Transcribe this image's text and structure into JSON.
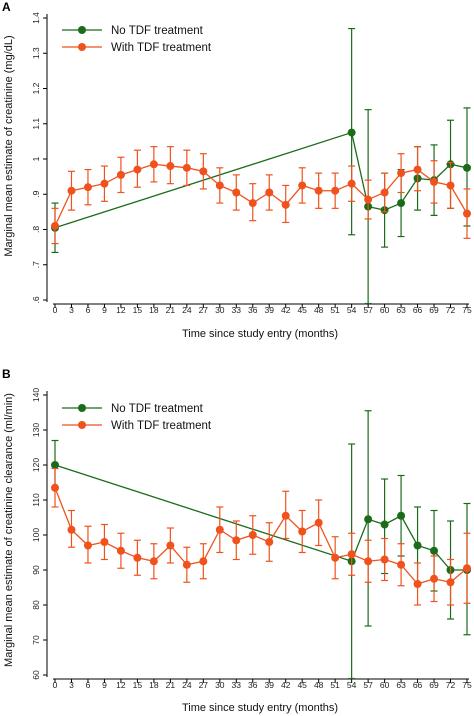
{
  "colors": {
    "no_tdf": "#1b6b1b",
    "with_tdf": "#f0521d"
  },
  "chart_data": [
    {
      "panel": "A",
      "type": "line",
      "xlabel": "Time since study entry (months)",
      "ylabel": "Marginal mean estimate of creatinine (mg/dL)",
      "x_ticks": [
        "0",
        "3",
        "6",
        "9",
        "12",
        "15",
        "18",
        "21",
        "24",
        "27",
        "30",
        "33",
        "36",
        "39",
        "42",
        "45",
        "48",
        "51",
        "54",
        "57",
        "60",
        "63",
        "66",
        "69",
        "72",
        "75"
      ],
      "y_ticks": [
        ".6",
        ".7",
        ".8",
        ".9",
        "1",
        "1.1",
        "1.2",
        "1.3",
        "1.4"
      ],
      "xlim": [
        0,
        75
      ],
      "ylim": [
        0.6,
        1.4
      ],
      "grid": false,
      "legend_position": "top-left",
      "series": [
        {
          "name": "No TDF treatment",
          "color": "#1b6b1b",
          "points": [
            {
              "x": 0,
              "y": 0.805,
              "lo": 0.735,
              "hi": 0.875
            },
            {
              "x": 54,
              "y": 1.075,
              "lo": 0.785,
              "hi": 1.37
            },
            {
              "x": 57,
              "y": 0.865,
              "lo": 0.59,
              "hi": 1.14
            },
            {
              "x": 60,
              "y": 0.855,
              "lo": 0.75,
              "hi": 0.96
            },
            {
              "x": 63,
              "y": 0.875,
              "lo": 0.78,
              "hi": 0.97
            },
            {
              "x": 66,
              "y": 0.945,
              "lo": 0.855,
              "hi": 1.035
            },
            {
              "x": 69,
              "y": 0.94,
              "lo": 0.84,
              "hi": 1.04
            },
            {
              "x": 72,
              "y": 0.985,
              "lo": 0.86,
              "hi": 1.11
            },
            {
              "x": 75,
              "y": 0.975,
              "lo": 0.81,
              "hi": 1.145
            }
          ]
        },
        {
          "name": "With TDF treatment",
          "color": "#f0521d",
          "points": [
            {
              "x": 0,
              "y": 0.81,
              "lo": 0.76,
              "hi": 0.86
            },
            {
              "x": 3,
              "y": 0.91,
              "lo": 0.855,
              "hi": 0.965
            },
            {
              "x": 6,
              "y": 0.92,
              "lo": 0.87,
              "hi": 0.97
            },
            {
              "x": 9,
              "y": 0.93,
              "lo": 0.88,
              "hi": 0.98
            },
            {
              "x": 12,
              "y": 0.955,
              "lo": 0.905,
              "hi": 1.005
            },
            {
              "x": 15,
              "y": 0.97,
              "lo": 0.92,
              "hi": 1.025
            },
            {
              "x": 18,
              "y": 0.985,
              "lo": 0.935,
              "hi": 1.035
            },
            {
              "x": 21,
              "y": 0.98,
              "lo": 0.93,
              "hi": 1.035
            },
            {
              "x": 24,
              "y": 0.975,
              "lo": 0.925,
              "hi": 1.025
            },
            {
              "x": 27,
              "y": 0.965,
              "lo": 0.915,
              "hi": 1.015
            },
            {
              "x": 30,
              "y": 0.925,
              "lo": 0.875,
              "hi": 0.975
            },
            {
              "x": 33,
              "y": 0.905,
              "lo": 0.855,
              "hi": 0.955
            },
            {
              "x": 36,
              "y": 0.875,
              "lo": 0.825,
              "hi": 0.93
            },
            {
              "x": 39,
              "y": 0.905,
              "lo": 0.855,
              "hi": 0.955
            },
            {
              "x": 42,
              "y": 0.87,
              "lo": 0.82,
              "hi": 0.925
            },
            {
              "x": 45,
              "y": 0.925,
              "lo": 0.875,
              "hi": 0.975
            },
            {
              "x": 48,
              "y": 0.91,
              "lo": 0.86,
              "hi": 0.96
            },
            {
              "x": 51,
              "y": 0.91,
              "lo": 0.86,
              "hi": 0.96
            },
            {
              "x": 54,
              "y": 0.93,
              "lo": 0.88,
              "hi": 0.98
            },
            {
              "x": 57,
              "y": 0.885,
              "lo": 0.83,
              "hi": 0.94
            },
            {
              "x": 60,
              "y": 0.905,
              "lo": 0.85,
              "hi": 0.96
            },
            {
              "x": 63,
              "y": 0.96,
              "lo": 0.905,
              "hi": 1.015
            },
            {
              "x": 66,
              "y": 0.97,
              "lo": 0.91,
              "hi": 1.035
            },
            {
              "x": 69,
              "y": 0.935,
              "lo": 0.875,
              "hi": 0.995
            },
            {
              "x": 72,
              "y": 0.925,
              "lo": 0.86,
              "hi": 0.99
            },
            {
              "x": 75,
              "y": 0.845,
              "lo": 0.775,
              "hi": 0.915
            }
          ]
        }
      ]
    },
    {
      "panel": "B",
      "type": "line",
      "xlabel": "Time since study entry (months)",
      "ylabel": "Marginal mean estimate of creatinine clearance (ml/min)",
      "x_ticks": [
        "0",
        "3",
        "6",
        "9",
        "12",
        "15",
        "18",
        "21",
        "24",
        "27",
        "30",
        "33",
        "36",
        "39",
        "42",
        "45",
        "48",
        "51",
        "54",
        "57",
        "60",
        "63",
        "66",
        "69",
        "72",
        "75"
      ],
      "y_ticks": [
        "60",
        "70",
        "80",
        "90",
        "100",
        "110",
        "120",
        "130",
        "140"
      ],
      "xlim": [
        0,
        75
      ],
      "ylim": [
        60,
        140
      ],
      "grid": false,
      "legend_position": "top-left",
      "series": [
        {
          "name": "No TDF treatment",
          "color": "#1b6b1b",
          "points": [
            {
              "x": 0,
              "y": 120,
              "lo": 113,
              "hi": 127
            },
            {
              "x": 54,
              "y": 92.5,
              "lo": 59,
              "hi": 126
            },
            {
              "x": 57,
              "y": 104.5,
              "lo": 74,
              "hi": 135.5
            },
            {
              "x": 60,
              "y": 103,
              "lo": 89,
              "hi": 116
            },
            {
              "x": 63,
              "y": 105.5,
              "lo": 94,
              "hi": 117
            },
            {
              "x": 66,
              "y": 97,
              "lo": 86,
              "hi": 108
            },
            {
              "x": 69,
              "y": 95.5,
              "lo": 84,
              "hi": 107
            },
            {
              "x": 72,
              "y": 90,
              "lo": 76,
              "hi": 104
            },
            {
              "x": 75,
              "y": 90,
              "lo": 71.5,
              "hi": 109
            }
          ]
        },
        {
          "name": "With TDF treatment",
          "color": "#f0521d",
          "points": [
            {
              "x": 0,
              "y": 113.5,
              "lo": 108,
              "hi": 119
            },
            {
              "x": 3,
              "y": 101.5,
              "lo": 96.5,
              "hi": 107
            },
            {
              "x": 6,
              "y": 97,
              "lo": 92,
              "hi": 102.5
            },
            {
              "x": 9,
              "y": 98,
              "lo": 93,
              "hi": 103
            },
            {
              "x": 12,
              "y": 95.5,
              "lo": 90.5,
              "hi": 100.5
            },
            {
              "x": 15,
              "y": 93.5,
              "lo": 88.5,
              "hi": 98.5
            },
            {
              "x": 18,
              "y": 92.5,
              "lo": 87.5,
              "hi": 97.5
            },
            {
              "x": 21,
              "y": 97,
              "lo": 92,
              "hi": 102
            },
            {
              "x": 24,
              "y": 91.5,
              "lo": 86.5,
              "hi": 96.5
            },
            {
              "x": 27,
              "y": 92.5,
              "lo": 87.5,
              "hi": 97.5
            },
            {
              "x": 30,
              "y": 101.5,
              "lo": 95,
              "hi": 108
            },
            {
              "x": 33,
              "y": 98.5,
              "lo": 93,
              "hi": 104
            },
            {
              "x": 36,
              "y": 100,
              "lo": 94.5,
              "hi": 105.5
            },
            {
              "x": 39,
              "y": 98,
              "lo": 92.5,
              "hi": 103.5
            },
            {
              "x": 42,
              "y": 105.5,
              "lo": 99,
              "hi": 112.5
            },
            {
              "x": 45,
              "y": 101,
              "lo": 95,
              "hi": 107
            },
            {
              "x": 48,
              "y": 103.5,
              "lo": 97,
              "hi": 110
            },
            {
              "x": 51,
              "y": 93.5,
              "lo": 87.5,
              "hi": 99.5
            },
            {
              "x": 54,
              "y": 94.5,
              "lo": 88.5,
              "hi": 100.5
            },
            {
              "x": 57,
              "y": 92.5,
              "lo": 86.5,
              "hi": 98.5
            },
            {
              "x": 60,
              "y": 93,
              "lo": 87,
              "hi": 99
            },
            {
              "x": 63,
              "y": 91.5,
              "lo": 85.5,
              "hi": 97.5
            },
            {
              "x": 66,
              "y": 86,
              "lo": 80,
              "hi": 92
            },
            {
              "x": 69,
              "y": 87.5,
              "lo": 81,
              "hi": 94
            },
            {
              "x": 72,
              "y": 86.5,
              "lo": 80,
              "hi": 93
            },
            {
              "x": 75,
              "y": 90.5,
              "lo": 80.5,
              "hi": 100.5
            }
          ]
        }
      ]
    }
  ]
}
